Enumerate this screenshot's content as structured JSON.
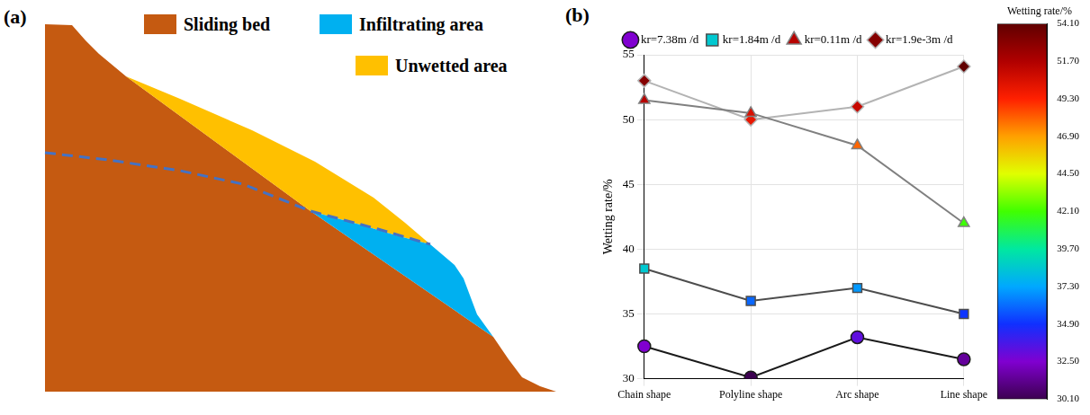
{
  "panels": {
    "a": {
      "label": "(a)",
      "legend": [
        {
          "label": "Sliding bed",
          "color": "#c55a11"
        },
        {
          "label": "Infiltrating area",
          "color": "#00b0f0"
        },
        {
          "label": "Unwetted area",
          "color": "#ffc000"
        }
      ]
    },
    "b": {
      "label": "(b)"
    }
  },
  "chart_data": {
    "type": "line",
    "y_label": "Wetting rate/%",
    "categories": [
      "Chain shape",
      "Polyline shape",
      "Arc shape",
      "Line shape"
    ],
    "series": [
      {
        "name": "kr=7.38m /d",
        "color": "#1a1a1a",
        "marker": "circle",
        "values": [
          32.5,
          30.1,
          33.2,
          31.5
        ]
      },
      {
        "name": "kr=1.84m /d",
        "color": "#4d4d4d",
        "marker": "rect",
        "values": [
          38.5,
          36.0,
          37.0,
          35.0
        ]
      },
      {
        "name": "kr=0.11m /d",
        "color": "#808080",
        "marker": "triangle",
        "values": [
          51.5,
          50.5,
          48.0,
          42.0
        ]
      },
      {
        "name": "kr=1.9e-3m /d",
        "color": "#b3b3b3",
        "marker": "rectRot",
        "values": [
          53.0,
          50.0,
          51.0,
          54.1
        ]
      }
    ],
    "ylim": [
      30,
      55
    ],
    "yticks": [
      30,
      35,
      40,
      45,
      50,
      55
    ],
    "grid": true,
    "legend": "top",
    "colorbar": {
      "title": "Wetting rate/%",
      "range": [
        30.1,
        54.1
      ],
      "ticks": [
        {
          "value": 30.1,
          "label": "30.10"
        },
        {
          "value": 32.5,
          "label": "32.50"
        },
        {
          "value": 34.9,
          "label": "34.90"
        },
        {
          "value": 37.3,
          "label": "37.30"
        },
        {
          "value": 39.7,
          "label": "39.70"
        },
        {
          "value": 42.1,
          "label": "42.10"
        },
        {
          "value": 44.5,
          "label": "44.50"
        },
        {
          "value": 46.9,
          "label": "46.90"
        },
        {
          "value": 49.3,
          "label": "49.30"
        },
        {
          "value": 51.7,
          "label": "51.70"
        },
        {
          "value": 54.1,
          "label": "54.10"
        }
      ]
    }
  }
}
